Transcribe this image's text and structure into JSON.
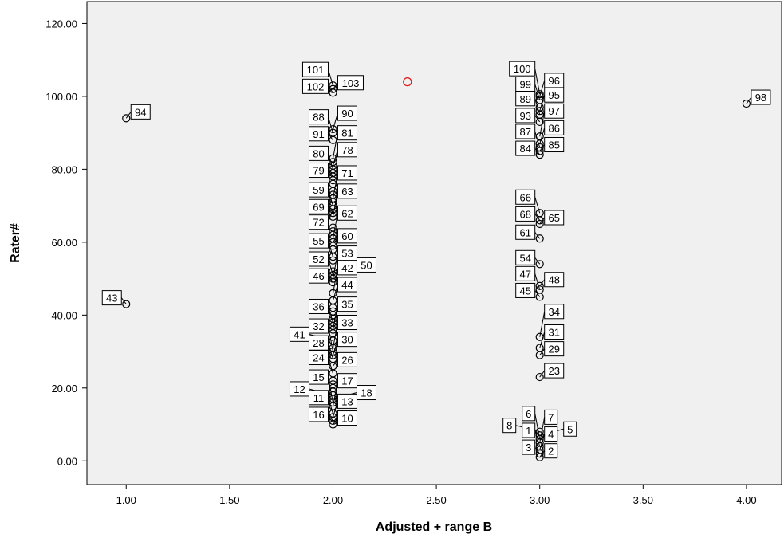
{
  "chart_data": {
    "type": "scatter",
    "title": "",
    "xlabel": "Adjusted + range B",
    "ylabel": "Rater#",
    "xlim": [
      0.81,
      4.17
    ],
    "ylim": [
      -6.5,
      126
    ],
    "x_ticks": [
      "1.00",
      "1.50",
      "2.00",
      "2.50",
      "3.00",
      "3.50",
      "4.00"
    ],
    "x_tick_values": [
      1,
      1.5,
      2,
      2.5,
      3,
      3.5,
      4
    ],
    "y_ticks": [
      "0.00",
      "20.00",
      "40.00",
      "60.00",
      "80.00",
      "100.00",
      "120.00"
    ],
    "y_tick_values": [
      0,
      20,
      40,
      60,
      80,
      100,
      120
    ],
    "grid": false,
    "colors": {
      "background": "#f0f0f0",
      "marker": "#000000",
      "highlight": "#e0191b"
    },
    "highlight_point": {
      "x": 2.36,
      "y": 104
    },
    "points": [
      {
        "x": 3,
        "y": 1,
        "label": "2"
      },
      {
        "x": 3,
        "y": 2,
        "label": "3"
      },
      {
        "x": 3,
        "y": 3,
        "label": "4"
      },
      {
        "x": 3,
        "y": 4,
        "label": "1"
      },
      {
        "x": 3,
        "y": 5,
        "label": "7"
      },
      {
        "x": 3,
        "y": 6,
        "label": "6"
      },
      {
        "x": 3,
        "y": 7,
        "label": "5"
      },
      {
        "x": 3,
        "y": 8,
        "label": "8"
      },
      {
        "x": 2,
        "y": 10,
        "label": "10"
      },
      {
        "x": 2,
        "y": 11,
        "label": "16"
      },
      {
        "x": 2,
        "y": 12,
        "label": "13"
      },
      {
        "x": 2,
        "y": 13,
        "label": "11"
      },
      {
        "x": 2,
        "y": 15,
        "label": "17"
      },
      {
        "x": 2,
        "y": 16,
        "label": "15"
      },
      {
        "x": 2,
        "y": 17,
        "label": "18"
      },
      {
        "x": 2,
        "y": 18,
        "label": "12"
      },
      {
        "x": 2,
        "y": 19,
        "label": ""
      },
      {
        "x": 2,
        "y": 20,
        "label": ""
      },
      {
        "x": 2,
        "y": 21,
        "label": ""
      },
      {
        "x": 2,
        "y": 22,
        "label": ""
      },
      {
        "x": 3,
        "y": 23,
        "label": "23"
      },
      {
        "x": 2,
        "y": 24,
        "label": "24"
      },
      {
        "x": 2,
        "y": 26,
        "label": "26"
      },
      {
        "x": 2,
        "y": 28,
        "label": "28"
      },
      {
        "x": 3,
        "y": 29,
        "label": "29"
      },
      {
        "x": 2,
        "y": 29,
        "label": "30"
      },
      {
        "x": 2,
        "y": 30,
        "label": "32"
      },
      {
        "x": 2,
        "y": 31,
        "label": "33"
      },
      {
        "x": 3,
        "y": 31,
        "label": "31"
      },
      {
        "x": 2,
        "y": 33,
        "label": "41"
      },
      {
        "x": 3,
        "y": 34,
        "label": "34"
      },
      {
        "x": 2,
        "y": 35,
        "label": ""
      },
      {
        "x": 2,
        "y": 36,
        "label": "35"
      },
      {
        "x": 2,
        "y": 37,
        "label": ""
      },
      {
        "x": 2,
        "y": 38,
        "label": "36"
      },
      {
        "x": 2,
        "y": 39,
        "label": ""
      },
      {
        "x": 2,
        "y": 40,
        "label": ""
      },
      {
        "x": 2,
        "y": 41,
        "label": ""
      },
      {
        "x": 2,
        "y": 42,
        "label": ""
      },
      {
        "x": 1,
        "y": 43,
        "label": "43"
      },
      {
        "x": 2,
        "y": 44,
        "label": "44"
      },
      {
        "x": 3,
        "y": 45,
        "label": "45"
      },
      {
        "x": 2,
        "y": 46,
        "label": "42"
      },
      {
        "x": 3,
        "y": 47,
        "label": "47"
      },
      {
        "x": 3,
        "y": 48,
        "label": "48"
      },
      {
        "x": 2,
        "y": 49,
        "label": "46"
      },
      {
        "x": 2,
        "y": 50,
        "label": "53"
      },
      {
        "x": 2,
        "y": 51,
        "label": "52"
      },
      {
        "x": 2,
        "y": 52,
        "label": "50"
      },
      {
        "x": 3,
        "y": 54,
        "label": "54"
      },
      {
        "x": 2,
        "y": 55,
        "label": ""
      },
      {
        "x": 2,
        "y": 56,
        "label": "55"
      },
      {
        "x": 2,
        "y": 58,
        "label": ""
      },
      {
        "x": 2,
        "y": 59,
        "label": ""
      },
      {
        "x": 2,
        "y": 60,
        "label": "60"
      },
      {
        "x": 3,
        "y": 61,
        "label": "61"
      },
      {
        "x": 2,
        "y": 61,
        "label": "62"
      },
      {
        "x": 2,
        "y": 62,
        "label": ""
      },
      {
        "x": 2,
        "y": 63,
        "label": ""
      },
      {
        "x": 2,
        "y": 64,
        "label": ""
      },
      {
        "x": 3,
        "y": 65,
        "label": "65"
      },
      {
        "x": 3,
        "y": 66,
        "label": "68"
      },
      {
        "x": 2,
        "y": 67,
        "label": "63"
      },
      {
        "x": 3,
        "y": 68,
        "label": "66"
      },
      {
        "x": 2,
        "y": 68,
        "label": "69"
      },
      {
        "x": 2,
        "y": 69,
        "label": "72"
      },
      {
        "x": 2,
        "y": 70,
        "label": "59"
      },
      {
        "x": 2,
        "y": 71,
        "label": ""
      },
      {
        "x": 2,
        "y": 72,
        "label": "71"
      },
      {
        "x": 2,
        "y": 73,
        "label": ""
      },
      {
        "x": 2,
        "y": 74,
        "label": ""
      },
      {
        "x": 2,
        "y": 76,
        "label": ""
      },
      {
        "x": 2,
        "y": 77,
        "label": ""
      },
      {
        "x": 2,
        "y": 78,
        "label": "79"
      },
      {
        "x": 2,
        "y": 79,
        "label": ""
      },
      {
        "x": 2,
        "y": 80,
        "label": "80"
      },
      {
        "x": 2,
        "y": 81,
        "label": "78"
      },
      {
        "x": 2,
        "y": 82,
        "label": ""
      },
      {
        "x": 2,
        "y": 83,
        "label": "81"
      },
      {
        "x": 3,
        "y": 84,
        "label": "84"
      },
      {
        "x": 3,
        "y": 85,
        "label": "85"
      },
      {
        "x": 3,
        "y": 86,
        "label": "87"
      },
      {
        "x": 3,
        "y": 87,
        "label": "86"
      },
      {
        "x": 2,
        "y": 88,
        "label": "91"
      },
      {
        "x": 3,
        "y": 89,
        "label": "97"
      },
      {
        "x": 2,
        "y": 90,
        "label": "88"
      },
      {
        "x": 2,
        "y": 91,
        "label": "90"
      },
      {
        "x": 3,
        "y": 93,
        "label": "93"
      },
      {
        "x": 1,
        "y": 94,
        "label": "94"
      },
      {
        "x": 3,
        "y": 95,
        "label": "89"
      },
      {
        "x": 3,
        "y": 96,
        "label": "95"
      },
      {
        "x": 3,
        "y": 97,
        "label": ""
      },
      {
        "x": 4,
        "y": 98,
        "label": "98"
      },
      {
        "x": 3,
        "y": 99,
        "label": "99"
      },
      {
        "x": 3,
        "y": 100,
        "label": "96"
      },
      {
        "x": 2,
        "y": 101,
        "label": "102"
      },
      {
        "x": 2,
        "y": 102,
        "label": "103"
      },
      {
        "x": 2,
        "y": 103,
        "label": "101"
      },
      {
        "x": 3,
        "y": 100.6,
        "label": "100"
      }
    ]
  }
}
